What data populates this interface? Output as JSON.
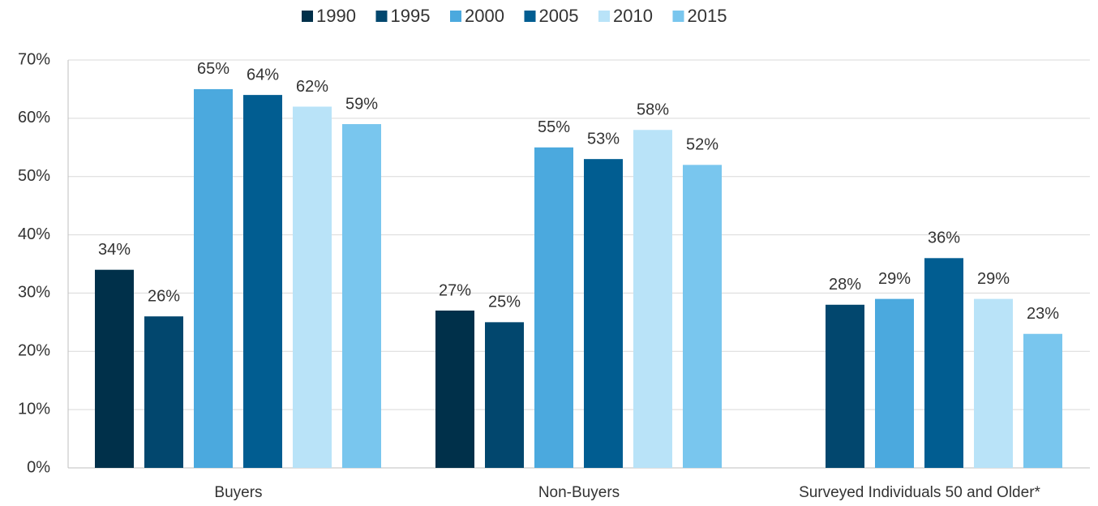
{
  "chart_data": {
    "type": "bar",
    "categories": [
      "Buyers",
      "Non-Buyers",
      "Surveyed Individuals 50 and Older*"
    ],
    "series": [
      {
        "name": "1990",
        "color": "#00304a",
        "values": [
          34,
          27,
          null
        ],
        "value_labels": [
          "34%",
          "27%",
          null
        ]
      },
      {
        "name": "1995",
        "color": "#02476e",
        "values": [
          26,
          25,
          28
        ],
        "value_labels": [
          "26%",
          "25%",
          "28%"
        ]
      },
      {
        "name": "2000",
        "color": "#4ba9de",
        "values": [
          65,
          55,
          29
        ],
        "value_labels": [
          "65%",
          "55%",
          "29%"
        ]
      },
      {
        "name": "2005",
        "color": "#015d91",
        "values": [
          64,
          53,
          36
        ],
        "value_labels": [
          "64%",
          "53%",
          "36%"
        ]
      },
      {
        "name": "2010",
        "color": "#b9e3f8",
        "values": [
          62,
          58,
          29
        ],
        "value_labels": [
          "62%",
          "58%",
          "29%"
        ]
      },
      {
        "name": "2015",
        "color": "#79c6ee",
        "values": [
          59,
          52,
          23
        ],
        "value_labels": [
          "59%",
          "52%",
          "23%"
        ]
      }
    ],
    "ylim": [
      0,
      70
    ],
    "yticks": [
      {
        "value": 0,
        "label": "0%"
      },
      {
        "value": 10,
        "label": "10%"
      },
      {
        "value": 20,
        "label": "20%"
      },
      {
        "value": 30,
        "label": "30%"
      },
      {
        "value": 40,
        "label": "40%"
      },
      {
        "value": 50,
        "label": "50%"
      },
      {
        "value": 60,
        "label": "60%"
      },
      {
        "value": 70,
        "label": "70%"
      }
    ],
    "grid": true,
    "legend": "top"
  }
}
